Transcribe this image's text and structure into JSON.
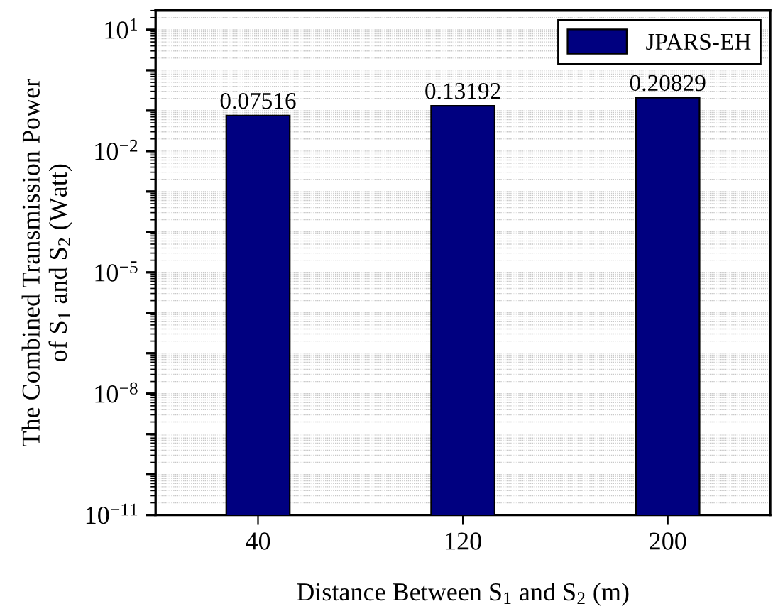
{
  "chart_data": {
    "type": "bar",
    "xlabel": "Distance Between S$_{1}$ and S$_{2}$ (m)",
    "ylabel": "The Combined Transmission Power\nof S$_{1}$ and S$_{2}$ (Watt)",
    "categories": [
      "40",
      "120",
      "200"
    ],
    "series": [
      {
        "name": "JPARS-EH",
        "color": "#000080",
        "values": [
          0.07516,
          0.13192,
          0.20829
        ]
      }
    ],
    "data_labels": true,
    "log": "y",
    "ylim": [
      1e-11,
      30
    ],
    "yticks": [
      {
        "value": 1e-11,
        "label": "10$^{−11}$"
      },
      {
        "value": 1e-10,
        "label": null
      },
      {
        "value": 1e-09,
        "label": null
      },
      {
        "value": 1e-08,
        "label": "10$^{−8}$"
      },
      {
        "value": 1e-07,
        "label": null
      },
      {
        "value": 1e-06,
        "label": null
      },
      {
        "value": 1e-05,
        "label": "10$^{−5}$"
      },
      {
        "value": 0.0001,
        "label": null
      },
      {
        "value": 0.001,
        "label": null
      },
      {
        "value": 0.01,
        "label": "10$^{−2}$"
      },
      {
        "value": 0.1,
        "label": null
      },
      {
        "value": 1,
        "label": null
      },
      {
        "value": 10,
        "label": "10$^{1}$"
      }
    ],
    "grid": "y",
    "legend": "top right"
  }
}
